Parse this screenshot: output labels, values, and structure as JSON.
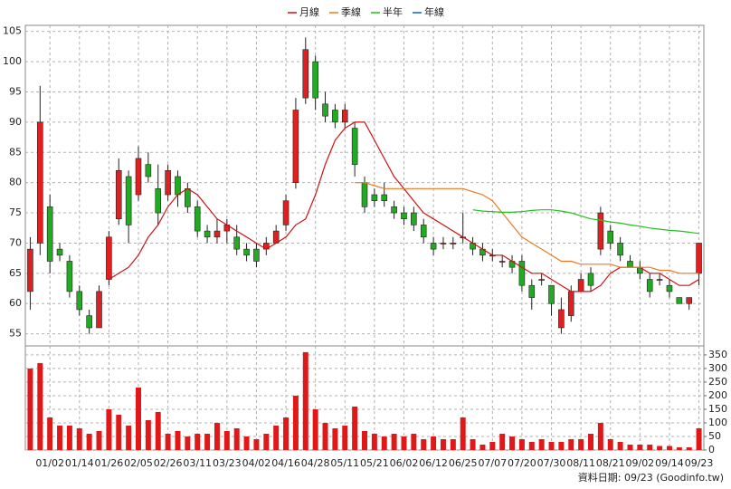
{
  "chart_data": {
    "type": "candlestick",
    "legend_position": "top",
    "grid": true,
    "up_color": "#e02020",
    "down_color": "#22aa22",
    "source": "資料日期: 09/23  (Goodinfo.tw)",
    "categories": [
      null,
      null,
      "01/02",
      null,
      null,
      "01/14",
      null,
      null,
      "01/26",
      null,
      null,
      "02/05",
      null,
      null,
      "02/26",
      null,
      null,
      "03/11",
      null,
      null,
      "03/23",
      null,
      null,
      "04/02",
      null,
      null,
      "04/16",
      null,
      null,
      "04/28",
      null,
      null,
      "05/11",
      null,
      null,
      "05/21",
      null,
      null,
      "06/02",
      null,
      null,
      "06/12",
      null,
      null,
      "06/25",
      null,
      null,
      "07/07",
      null,
      null,
      "07/20",
      null,
      null,
      "07/30",
      null,
      null,
      "08/11",
      null,
      null,
      "08/21",
      null,
      null,
      "09/02",
      null,
      null,
      "09/14",
      null,
      null,
      "09/23"
    ],
    "open": [
      62,
      70,
      76,
      69,
      67,
      62,
      58,
      56,
      64,
      74,
      81,
      78,
      83,
      79,
      78,
      81,
      79,
      76,
      72,
      71,
      72,
      71,
      69,
      69,
      69,
      70,
      73,
      80,
      94,
      100,
      93,
      92,
      90,
      89,
      80,
      78,
      78,
      76,
      75,
      75,
      73,
      70,
      70,
      70,
      71,
      70,
      69,
      68,
      67,
      67,
      67,
      63,
      64,
      63,
      56,
      58,
      62,
      65,
      69,
      72,
      70,
      67,
      66,
      64,
      64,
      63,
      61,
      60,
      65
    ],
    "high": [
      71,
      96,
      78,
      70,
      68,
      63,
      59,
      63,
      72,
      84,
      82,
      86,
      85,
      83,
      83,
      82,
      80,
      77,
      73,
      74,
      74,
      73,
      70,
      70,
      71,
      73,
      78,
      94,
      104,
      101,
      95,
      93,
      93,
      90,
      81,
      79,
      80,
      77,
      76,
      76,
      74,
      71,
      71,
      71,
      75,
      71,
      70,
      69,
      68,
      68,
      68,
      64,
      65,
      63,
      61,
      63,
      65,
      66,
      76,
      73,
      71,
      68,
      67,
      65,
      65,
      64,
      61,
      61,
      70
    ],
    "low": [
      59,
      68,
      65,
      67,
      61,
      58,
      55,
      56,
      63,
      73,
      70,
      77,
      80,
      73,
      77,
      76,
      75,
      71,
      70,
      70,
      70,
      68,
      67,
      66,
      68,
      70,
      72,
      79,
      93,
      92,
      90,
      89,
      89,
      81,
      75,
      76,
      76,
      74,
      73,
      72,
      70,
      68,
      69,
      69,
      70,
      68,
      67,
      67,
      66,
      65,
      62,
      59,
      63,
      58,
      55,
      57,
      62,
      62,
      68,
      69,
      67,
      66,
      64,
      61,
      63,
      61,
      60,
      59,
      63
    ],
    "close": [
      69,
      90,
      67,
      68,
      62,
      59,
      56,
      62,
      71,
      82,
      73,
      84,
      81,
      75,
      82,
      78,
      76,
      72,
      71,
      72,
      73,
      69,
      68,
      67,
      70,
      72,
      77,
      92,
      102,
      94,
      91,
      90,
      92,
      83,
      76,
      77,
      77,
      75,
      74,
      73,
      71,
      69,
      70,
      70,
      71,
      69,
      68,
      68,
      67,
      66,
      63,
      61,
      64,
      60,
      59,
      62,
      64,
      63,
      75,
      70,
      68,
      66,
      65,
      62,
      64,
      62,
      60,
      61,
      70
    ],
    "ylim": [
      53,
      106
    ],
    "yticks": [
      55,
      60,
      65,
      70,
      75,
      80,
      85,
      90,
      95,
      100,
      105
    ],
    "series": [
      {
        "name": "月線",
        "color": "#d01010",
        "values": [
          null,
          null,
          null,
          null,
          null,
          null,
          null,
          null,
          64,
          65,
          66,
          68,
          71,
          73,
          76,
          78,
          79,
          78,
          76,
          74,
          73,
          72,
          71,
          70,
          69,
          70,
          71,
          73,
          74,
          78,
          83,
          87,
          89,
          90,
          90,
          87,
          84,
          81,
          79,
          77,
          75,
          74,
          73,
          72,
          71,
          70,
          69,
          68,
          68,
          67,
          66,
          65,
          65,
          64,
          63,
          62,
          62,
          62,
          63,
          65,
          66,
          66,
          66,
          65,
          65,
          64,
          63,
          63,
          64
        ]
      },
      {
        "name": "季線",
        "color": "#f07820",
        "values": [
          null,
          null,
          null,
          null,
          null,
          null,
          null,
          null,
          null,
          null,
          null,
          null,
          null,
          null,
          null,
          null,
          null,
          null,
          null,
          null,
          null,
          null,
          null,
          null,
          null,
          null,
          null,
          null,
          null,
          null,
          null,
          null,
          null,
          80,
          80,
          79.5,
          79,
          79,
          79,
          79,
          79,
          79,
          79,
          79,
          79,
          78.5,
          78,
          77,
          75,
          73,
          71,
          70,
          69,
          68,
          67,
          67,
          66.5,
          66.5,
          66.5,
          66.5,
          66,
          66,
          66,
          66,
          65.5,
          65.5,
          65,
          65,
          65
        ]
      },
      {
        "name": "半年",
        "color": "#20c020",
        "values": [
          null,
          null,
          null,
          null,
          null,
          null,
          null,
          null,
          null,
          null,
          null,
          null,
          null,
          null,
          null,
          null,
          null,
          null,
          null,
          null,
          null,
          null,
          null,
          null,
          null,
          null,
          null,
          null,
          null,
          null,
          null,
          null,
          null,
          null,
          null,
          null,
          null,
          null,
          null,
          null,
          null,
          null,
          null,
          null,
          null,
          75.5,
          75.3,
          75.2,
          75.1,
          75.1,
          75.2,
          75.4,
          75.5,
          75.5,
          75.3,
          75,
          74.5,
          74,
          73.8,
          73.5,
          73.3,
          73,
          72.8,
          72.5,
          72.3,
          72.1,
          72,
          71.8,
          71.6
        ]
      },
      {
        "name": "年線",
        "color": "#1060d0",
        "values": [
          null,
          null,
          null,
          null,
          null,
          null,
          null,
          null,
          null,
          null,
          null,
          null,
          null,
          null,
          null,
          null,
          null,
          null,
          null,
          null,
          null,
          null,
          null,
          null,
          null,
          null,
          null,
          null,
          null,
          null,
          null,
          null,
          null,
          null,
          null,
          null,
          null,
          null,
          null,
          null,
          null,
          null,
          null,
          null,
          null,
          null,
          null,
          null,
          null,
          null,
          null,
          null,
          null,
          null,
          null,
          null,
          null,
          null,
          null,
          null,
          null,
          null,
          null,
          null,
          null,
          null,
          null,
          null,
          null
        ]
      }
    ],
    "volume": {
      "color": "#e01818",
      "values": [
        300,
        320,
        120,
        90,
        90,
        80,
        60,
        70,
        150,
        130,
        90,
        230,
        110,
        140,
        60,
        70,
        50,
        60,
        60,
        100,
        70,
        80,
        50,
        40,
        60,
        90,
        120,
        200,
        360,
        150,
        100,
        80,
        90,
        160,
        70,
        60,
        50,
        60,
        50,
        60,
        40,
        50,
        40,
        40,
        120,
        40,
        20,
        30,
        60,
        50,
        40,
        30,
        40,
        30,
        30,
        40,
        40,
        60,
        100,
        40,
        30,
        20,
        20,
        20,
        15,
        15,
        10,
        10,
        80
      ],
      "ylim": [
        0,
        383
      ],
      "yticks": [
        0,
        50,
        100,
        150,
        200,
        250,
        300,
        350
      ]
    }
  }
}
